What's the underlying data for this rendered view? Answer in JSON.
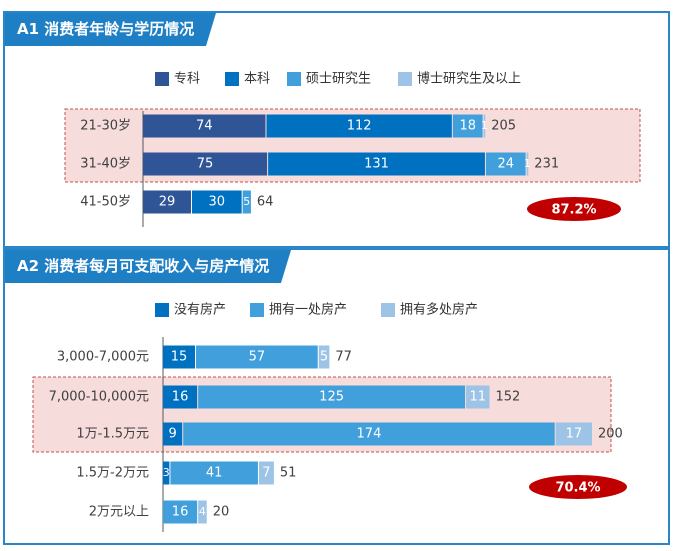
{
  "colors": {
    "frame": "#2a86c8",
    "title_bg": "#1f7fc4",
    "highlight_bg": "#f7dcdc",
    "highlight_border": "#c0504d",
    "badge": "#c00000"
  },
  "chart_data": [
    {
      "type": "bar",
      "orientation": "horizontal",
      "stacked": true,
      "title": "A1 消费者年龄与学历情况",
      "categories": [
        "21-30岁",
        "31-40岁",
        "41-50岁"
      ],
      "series": [
        {
          "name": "专科",
          "values": [
            74,
            75,
            29
          ],
          "color": "#2f5597"
        },
        {
          "name": "本科",
          "values": [
            112,
            131,
            30
          ],
          "color": "#0070c0"
        },
        {
          "name": "硕士研究生",
          "values": [
            18,
            24,
            5
          ],
          "color": "#41a0dc"
        },
        {
          "name": "博士研究生及以上",
          "values": [
            1,
            1,
            0
          ],
          "color": "#9dc3e6"
        }
      ],
      "totals": [
        205,
        231,
        64
      ],
      "highlighted_categories": [
        "21-30岁",
        "31-40岁"
      ],
      "badge": "87.2%",
      "legend_position": "top"
    },
    {
      "type": "bar",
      "orientation": "horizontal",
      "stacked": true,
      "title": "A2 消费者每月可支配收入与房产情况",
      "categories": [
        "3,000-7,000元",
        "7,000-10,000元",
        "1万-1.5万元",
        "1.5万-2万元",
        "2万元以上"
      ],
      "series": [
        {
          "name": "没有房产",
          "values": [
            15,
            16,
            9,
            3,
            0
          ],
          "color": "#0070c0"
        },
        {
          "name": "拥有一处房产",
          "values": [
            57,
            125,
            174,
            41,
            16
          ],
          "color": "#41a0dc"
        },
        {
          "name": "拥有多处房产",
          "values": [
            5,
            11,
            17,
            7,
            4
          ],
          "color": "#9dc3e6"
        }
      ],
      "totals": [
        77,
        152,
        200,
        51,
        20
      ],
      "highlighted_categories": [
        "7,000-10,000元",
        "1万-1.5万元"
      ],
      "badge": "70.4%",
      "legend_position": "top"
    }
  ]
}
